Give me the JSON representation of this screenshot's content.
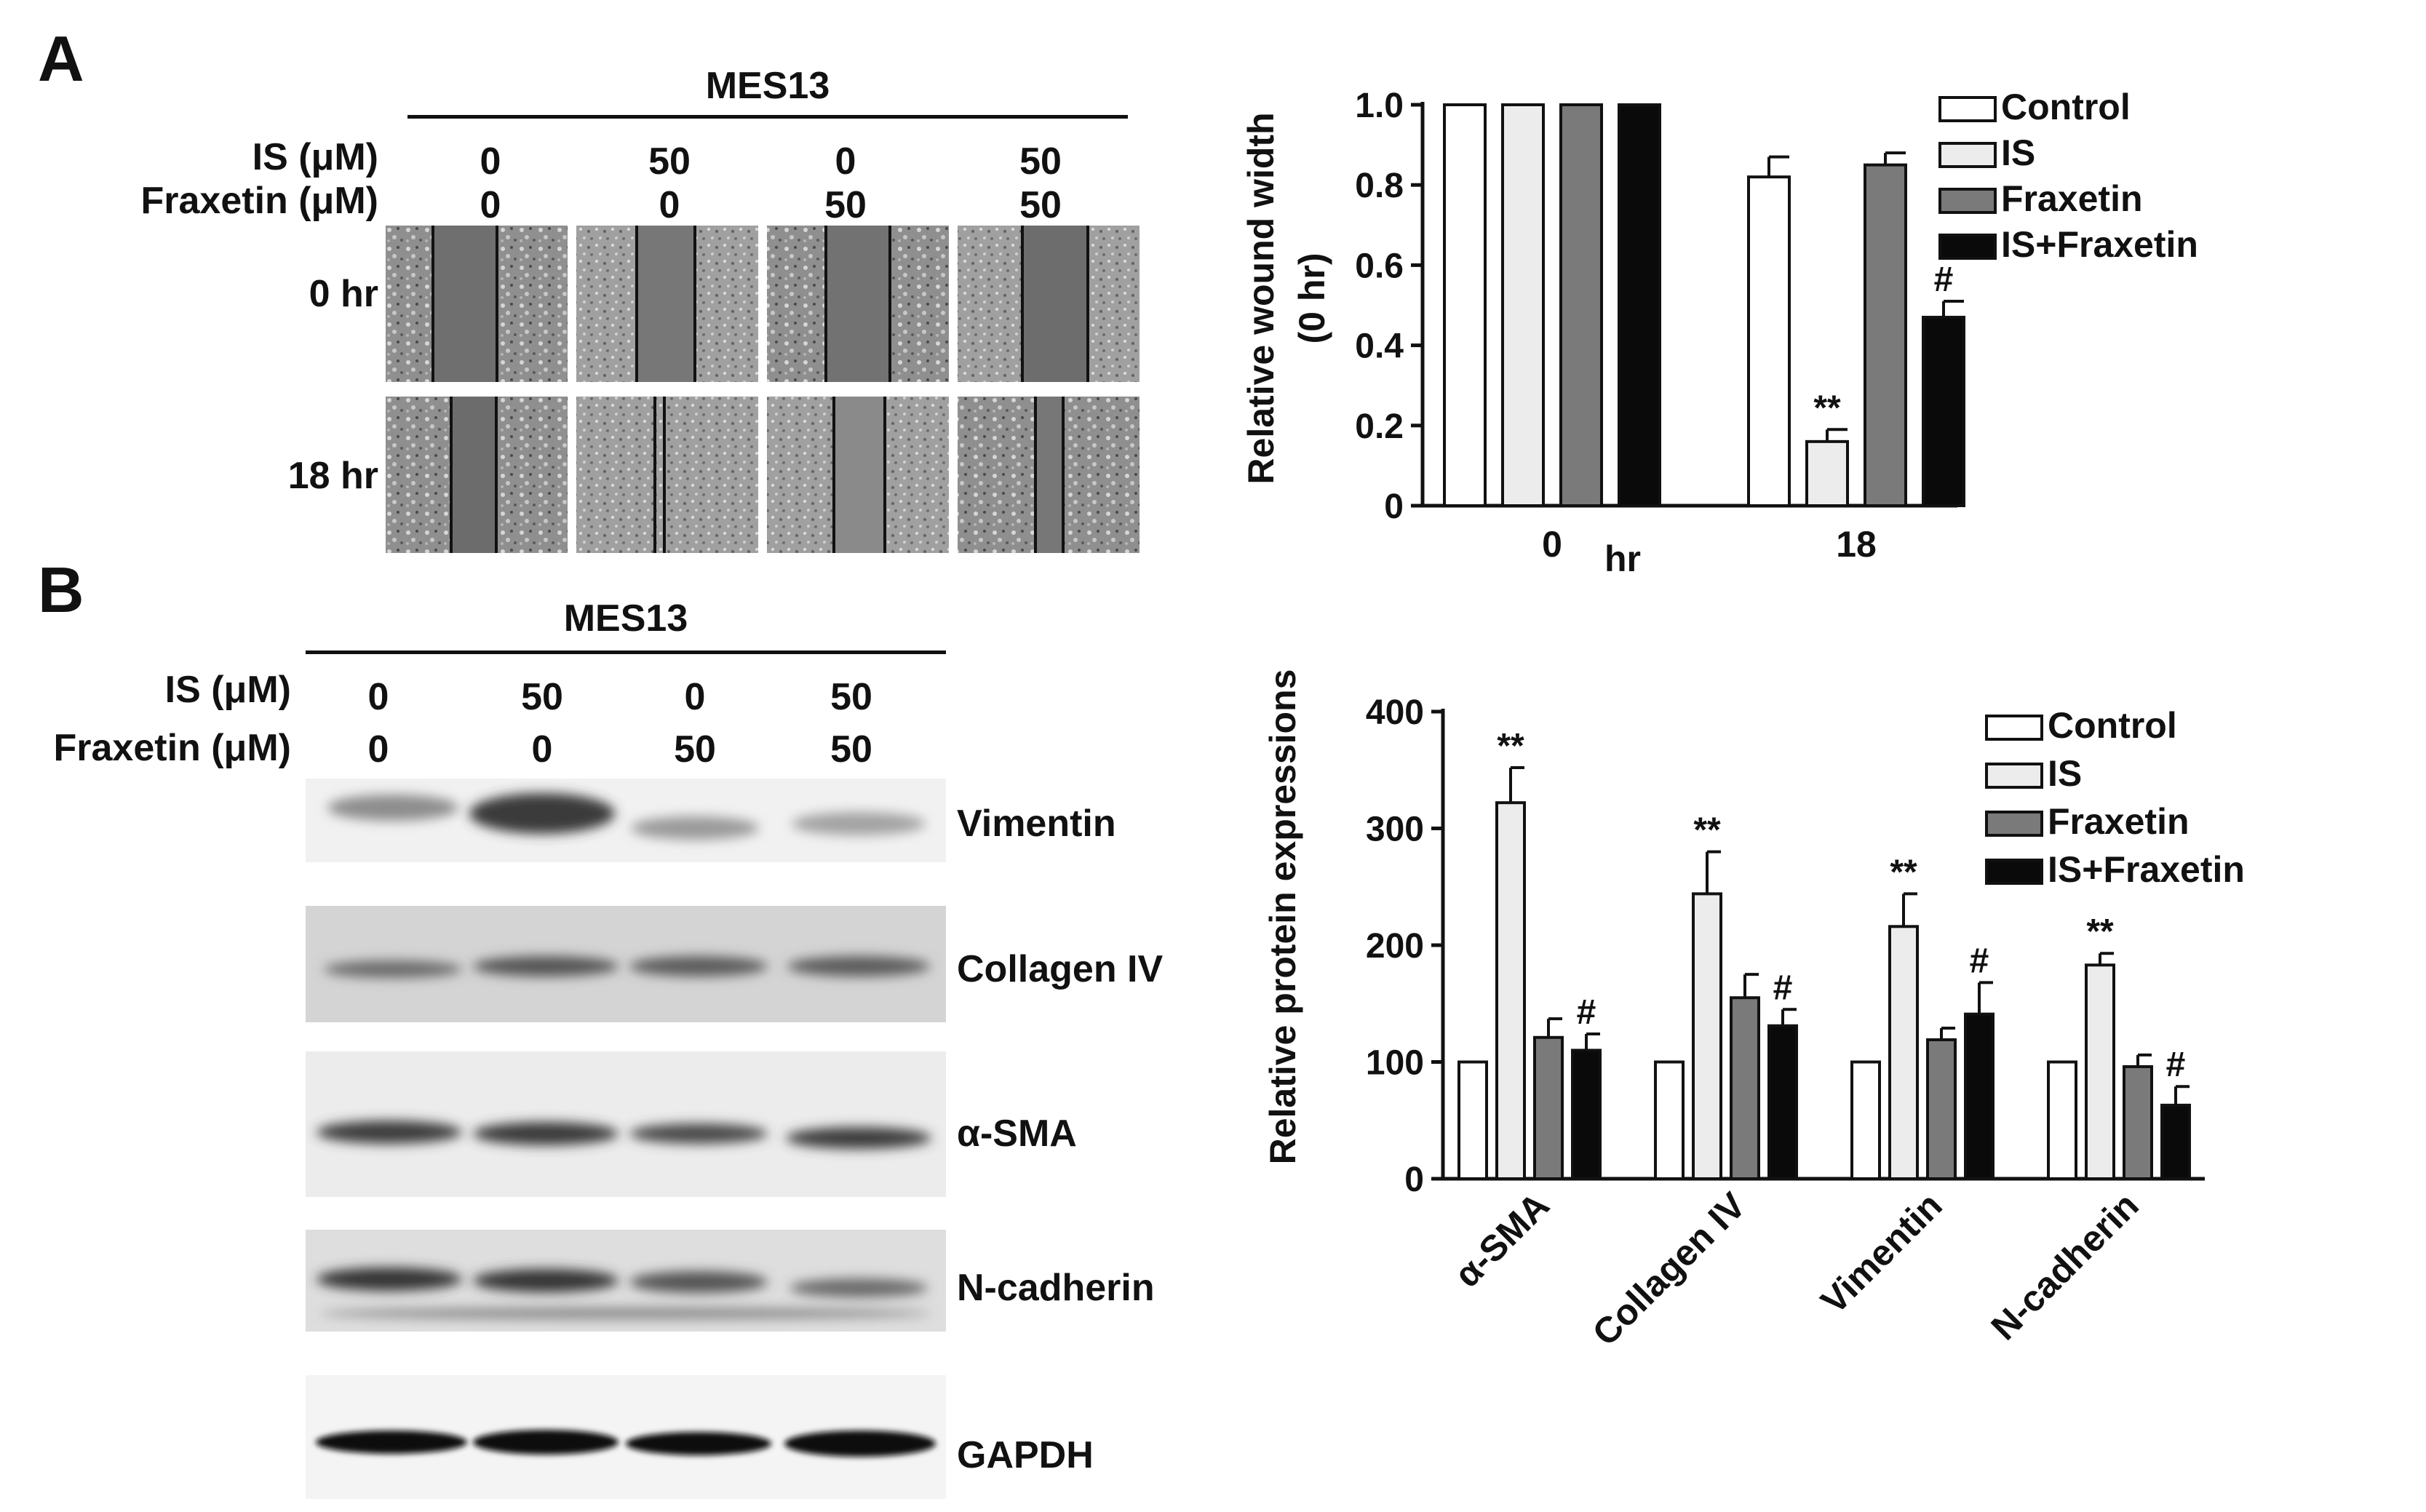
{
  "panelA": {
    "letter": "A",
    "cell_line": "MES13",
    "is_label": "IS (μM)",
    "fraxetin_label": "Fraxetin (μM)",
    "is_values": [
      "0",
      "50",
      "0",
      "50"
    ],
    "fraxetin_values": [
      "0",
      "0",
      "50",
      "50"
    ],
    "time_rows": [
      "0 hr",
      "18 hr"
    ]
  },
  "panelB": {
    "letter": "B",
    "cell_line": "MES13",
    "is_label": "IS (μM)",
    "fraxetin_label": "Fraxetin (μM)",
    "is_values": [
      "0",
      "50",
      "0",
      "50"
    ],
    "fraxetin_values": [
      "0",
      "0",
      "50",
      "50"
    ],
    "blot_labels": [
      "Vimentin",
      "Collagen IV",
      "α-SMA",
      "N-cadherin",
      "GAPDH"
    ]
  },
  "colors": {
    "Control": "#ffffff",
    "IS": "#ececec",
    "Fraxetin": "#7a7a7a",
    "IS+Fraxetin": "#0a0a0a"
  },
  "chart_data": [
    {
      "type": "bar",
      "ylabel": "Relative wound width (0 hr)",
      "xlabel": "hr",
      "categories": [
        "0",
        "18"
      ],
      "ylim": [
        0,
        1.0
      ],
      "yticks": [
        "0",
        "0.2",
        "0.4",
        "0.6",
        "0.8",
        "1.0"
      ],
      "series": [
        {
          "name": "Control",
          "values": [
            1.0,
            0.82
          ],
          "errors": [
            0,
            0.05
          ],
          "annotations": [
            "",
            ""
          ]
        },
        {
          "name": "IS",
          "values": [
            1.0,
            0.16
          ],
          "errors": [
            0,
            0.03
          ],
          "annotations": [
            "",
            "**"
          ]
        },
        {
          "name": "Fraxetin",
          "values": [
            1.0,
            0.85
          ],
          "errors": [
            0,
            0.03
          ],
          "annotations": [
            "",
            ""
          ]
        },
        {
          "name": "IS+Fraxetin",
          "values": [
            1.0,
            0.47
          ],
          "errors": [
            0,
            0.04
          ],
          "annotations": [
            "",
            "#"
          ]
        }
      ],
      "legend": [
        "Control",
        "IS",
        "Fraxetin",
        "IS+Fraxetin"
      ]
    },
    {
      "type": "bar",
      "ylabel": "Relative protein expressions",
      "categories": [
        "α-SMA",
        "Collagen IV",
        "Vimentin",
        "N-cadherin"
      ],
      "ylim": [
        0,
        400
      ],
      "yticks": [
        "0",
        "100",
        "200",
        "300",
        "400"
      ],
      "series": [
        {
          "name": "Control",
          "values": [
            100,
            100,
            100,
            100
          ],
          "errors": [
            0,
            0,
            0,
            0
          ],
          "annotations": [
            "",
            "",
            "",
            ""
          ]
        },
        {
          "name": "IS",
          "values": [
            322,
            244,
            216,
            183
          ],
          "errors": [
            30,
            36,
            28,
            10
          ],
          "annotations": [
            "**",
            "**",
            "**",
            "**"
          ]
        },
        {
          "name": "Fraxetin",
          "values": [
            121,
            155,
            119,
            96
          ],
          "errors": [
            16,
            20,
            10,
            10
          ],
          "annotations": [
            "",
            "",
            "",
            ""
          ]
        },
        {
          "name": "IS+Fraxetin",
          "values": [
            110,
            131,
            141,
            63
          ],
          "errors": [
            14,
            14,
            27,
            16
          ],
          "annotations": [
            "#",
            "#",
            "#",
            "#"
          ]
        }
      ],
      "legend": [
        "Control",
        "IS",
        "Fraxetin",
        "IS+Fraxetin"
      ]
    }
  ]
}
